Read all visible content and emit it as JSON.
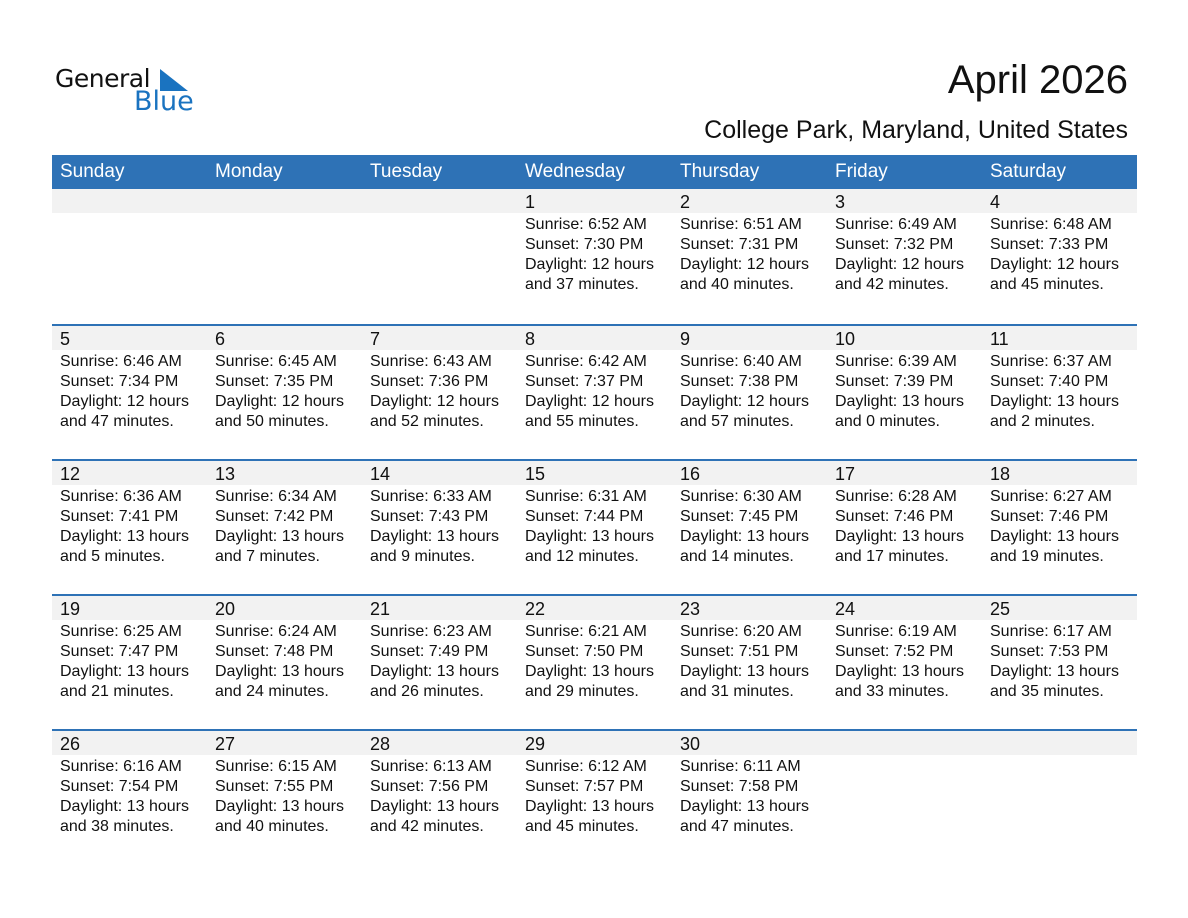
{
  "logo": {
    "text1": "General",
    "text2": "Blue"
  },
  "header": {
    "title": "April 2026",
    "subtitle": "College Park, Maryland, United States"
  },
  "colors": {
    "accent": "#2e72b6",
    "band": "#f2f2f2",
    "logo_blue": "#1a73c0"
  },
  "weekdays": [
    "Sunday",
    "Monday",
    "Tuesday",
    "Wednesday",
    "Thursday",
    "Friday",
    "Saturday"
  ],
  "weeks": [
    [
      null,
      null,
      null,
      {
        "day": "1",
        "sunrise": "Sunrise: 6:52 AM",
        "sunset": "Sunset: 7:30 PM",
        "daylight": "Daylight: 12 hours",
        "minutes": "and 37 minutes."
      },
      {
        "day": "2",
        "sunrise": "Sunrise: 6:51 AM",
        "sunset": "Sunset: 7:31 PM",
        "daylight": "Daylight: 12 hours",
        "minutes": "and 40 minutes."
      },
      {
        "day": "3",
        "sunrise": "Sunrise: 6:49 AM",
        "sunset": "Sunset: 7:32 PM",
        "daylight": "Daylight: 12 hours",
        "minutes": "and 42 minutes."
      },
      {
        "day": "4",
        "sunrise": "Sunrise: 6:48 AM",
        "sunset": "Sunset: 7:33 PM",
        "daylight": "Daylight: 12 hours",
        "minutes": "and 45 minutes."
      }
    ],
    [
      {
        "day": "5",
        "sunrise": "Sunrise: 6:46 AM",
        "sunset": "Sunset: 7:34 PM",
        "daylight": "Daylight: 12 hours",
        "minutes": "and 47 minutes."
      },
      {
        "day": "6",
        "sunrise": "Sunrise: 6:45 AM",
        "sunset": "Sunset: 7:35 PM",
        "daylight": "Daylight: 12 hours",
        "minutes": "and 50 minutes."
      },
      {
        "day": "7",
        "sunrise": "Sunrise: 6:43 AM",
        "sunset": "Sunset: 7:36 PM",
        "daylight": "Daylight: 12 hours",
        "minutes": "and 52 minutes."
      },
      {
        "day": "8",
        "sunrise": "Sunrise: 6:42 AM",
        "sunset": "Sunset: 7:37 PM",
        "daylight": "Daylight: 12 hours",
        "minutes": "and 55 minutes."
      },
      {
        "day": "9",
        "sunrise": "Sunrise: 6:40 AM",
        "sunset": "Sunset: 7:38 PM",
        "daylight": "Daylight: 12 hours",
        "minutes": "and 57 minutes."
      },
      {
        "day": "10",
        "sunrise": "Sunrise: 6:39 AM",
        "sunset": "Sunset: 7:39 PM",
        "daylight": "Daylight: 13 hours",
        "minutes": "and 0 minutes."
      },
      {
        "day": "11",
        "sunrise": "Sunrise: 6:37 AM",
        "sunset": "Sunset: 7:40 PM",
        "daylight": "Daylight: 13 hours",
        "minutes": "and 2 minutes."
      }
    ],
    [
      {
        "day": "12",
        "sunrise": "Sunrise: 6:36 AM",
        "sunset": "Sunset: 7:41 PM",
        "daylight": "Daylight: 13 hours",
        "minutes": "and 5 minutes."
      },
      {
        "day": "13",
        "sunrise": "Sunrise: 6:34 AM",
        "sunset": "Sunset: 7:42 PM",
        "daylight": "Daylight: 13 hours",
        "minutes": "and 7 minutes."
      },
      {
        "day": "14",
        "sunrise": "Sunrise: 6:33 AM",
        "sunset": "Sunset: 7:43 PM",
        "daylight": "Daylight: 13 hours",
        "minutes": "and 9 minutes."
      },
      {
        "day": "15",
        "sunrise": "Sunrise: 6:31 AM",
        "sunset": "Sunset: 7:44 PM",
        "daylight": "Daylight: 13 hours",
        "minutes": "and 12 minutes."
      },
      {
        "day": "16",
        "sunrise": "Sunrise: 6:30 AM",
        "sunset": "Sunset: 7:45 PM",
        "daylight": "Daylight: 13 hours",
        "minutes": "and 14 minutes."
      },
      {
        "day": "17",
        "sunrise": "Sunrise: 6:28 AM",
        "sunset": "Sunset: 7:46 PM",
        "daylight": "Daylight: 13 hours",
        "minutes": "and 17 minutes."
      },
      {
        "day": "18",
        "sunrise": "Sunrise: 6:27 AM",
        "sunset": "Sunset: 7:46 PM",
        "daylight": "Daylight: 13 hours",
        "minutes": "and 19 minutes."
      }
    ],
    [
      {
        "day": "19",
        "sunrise": "Sunrise: 6:25 AM",
        "sunset": "Sunset: 7:47 PM",
        "daylight": "Daylight: 13 hours",
        "minutes": "and 21 minutes."
      },
      {
        "day": "20",
        "sunrise": "Sunrise: 6:24 AM",
        "sunset": "Sunset: 7:48 PM",
        "daylight": "Daylight: 13 hours",
        "minutes": "and 24 minutes."
      },
      {
        "day": "21",
        "sunrise": "Sunrise: 6:23 AM",
        "sunset": "Sunset: 7:49 PM",
        "daylight": "Daylight: 13 hours",
        "minutes": "and 26 minutes."
      },
      {
        "day": "22",
        "sunrise": "Sunrise: 6:21 AM",
        "sunset": "Sunset: 7:50 PM",
        "daylight": "Daylight: 13 hours",
        "minutes": "and 29 minutes."
      },
      {
        "day": "23",
        "sunrise": "Sunrise: 6:20 AM",
        "sunset": "Sunset: 7:51 PM",
        "daylight": "Daylight: 13 hours",
        "minutes": "and 31 minutes."
      },
      {
        "day": "24",
        "sunrise": "Sunrise: 6:19 AM",
        "sunset": "Sunset: 7:52 PM",
        "daylight": "Daylight: 13 hours",
        "minutes": "and 33 minutes."
      },
      {
        "day": "25",
        "sunrise": "Sunrise: 6:17 AM",
        "sunset": "Sunset: 7:53 PM",
        "daylight": "Daylight: 13 hours",
        "minutes": "and 35 minutes."
      }
    ],
    [
      {
        "day": "26",
        "sunrise": "Sunrise: 6:16 AM",
        "sunset": "Sunset: 7:54 PM",
        "daylight": "Daylight: 13 hours",
        "minutes": "and 38 minutes."
      },
      {
        "day": "27",
        "sunrise": "Sunrise: 6:15 AM",
        "sunset": "Sunset: 7:55 PM",
        "daylight": "Daylight: 13 hours",
        "minutes": "and 40 minutes."
      },
      {
        "day": "28",
        "sunrise": "Sunrise: 6:13 AM",
        "sunset": "Sunset: 7:56 PM",
        "daylight": "Daylight: 13 hours",
        "minutes": "and 42 minutes."
      },
      {
        "day": "29",
        "sunrise": "Sunrise: 6:12 AM",
        "sunset": "Sunset: 7:57 PM",
        "daylight": "Daylight: 13 hours",
        "minutes": "and 45 minutes."
      },
      {
        "day": "30",
        "sunrise": "Sunrise: 6:11 AM",
        "sunset": "Sunset: 7:58 PM",
        "daylight": "Daylight: 13 hours",
        "minutes": "and 47 minutes."
      },
      null,
      null
    ]
  ]
}
